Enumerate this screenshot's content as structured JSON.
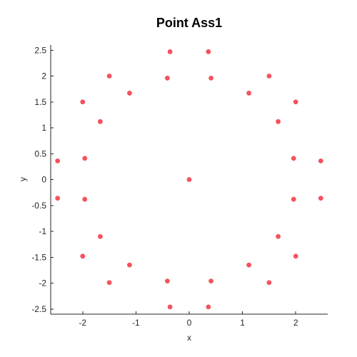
{
  "chart_data": {
    "type": "scatter",
    "title": "Point Ass1",
    "xlabel": "x",
    "ylabel": "y",
    "xlim": [
      -2.6,
      2.6
    ],
    "ylim": [
      -2.6,
      2.6
    ],
    "xticks": [
      -2,
      -1,
      0,
      1,
      2
    ],
    "xtick_labels": [
      "-2",
      "-1",
      "0",
      "1",
      "2"
    ],
    "yticks": [
      2.5,
      2,
      1.5,
      1,
      0.5,
      0,
      -0.5,
      -1,
      -1.5,
      -2,
      -2.5
    ],
    "ytick_labels": [
      "2.5",
      "2",
      "1.5",
      "1",
      "0.5",
      "0",
      "-0.5",
      "-1",
      "-1.5",
      "-2",
      "-2.5"
    ],
    "grid": false,
    "marker_color": "#f4525e",
    "points": [
      {
        "x": 0,
        "y": 0
      },
      {
        "x": -0.36,
        "y": 2.47
      },
      {
        "x": 0.36,
        "y": 2.47
      },
      {
        "x": -1.5,
        "y": 2.0
      },
      {
        "x": -0.41,
        "y": 1.96
      },
      {
        "x": 0.41,
        "y": 1.96
      },
      {
        "x": 1.5,
        "y": 2.0
      },
      {
        "x": -1.12,
        "y": 1.67
      },
      {
        "x": 1.12,
        "y": 1.67
      },
      {
        "x": -2.0,
        "y": 1.5
      },
      {
        "x": 2.0,
        "y": 1.5
      },
      {
        "x": -1.67,
        "y": 1.12
      },
      {
        "x": 1.67,
        "y": 1.12
      },
      {
        "x": -1.96,
        "y": 0.41
      },
      {
        "x": 1.96,
        "y": 0.41
      },
      {
        "x": -2.47,
        "y": 0.36
      },
      {
        "x": 2.47,
        "y": 0.36
      },
      {
        "x": -2.47,
        "y": -0.36
      },
      {
        "x": 2.47,
        "y": -0.36
      },
      {
        "x": -1.96,
        "y": -0.38
      },
      {
        "x": 1.96,
        "y": -0.38
      },
      {
        "x": -1.67,
        "y": -1.1
      },
      {
        "x": 1.67,
        "y": -1.1
      },
      {
        "x": -2.0,
        "y": -1.48
      },
      {
        "x": 2.0,
        "y": -1.48
      },
      {
        "x": -1.12,
        "y": -1.65
      },
      {
        "x": 1.12,
        "y": -1.65
      },
      {
        "x": -1.5,
        "y": -1.99
      },
      {
        "x": -0.41,
        "y": -1.96
      },
      {
        "x": 0.41,
        "y": -1.96
      },
      {
        "x": 1.5,
        "y": -1.99
      },
      {
        "x": -0.36,
        "y": -2.46
      },
      {
        "x": 0.36,
        "y": -2.46
      }
    ]
  }
}
